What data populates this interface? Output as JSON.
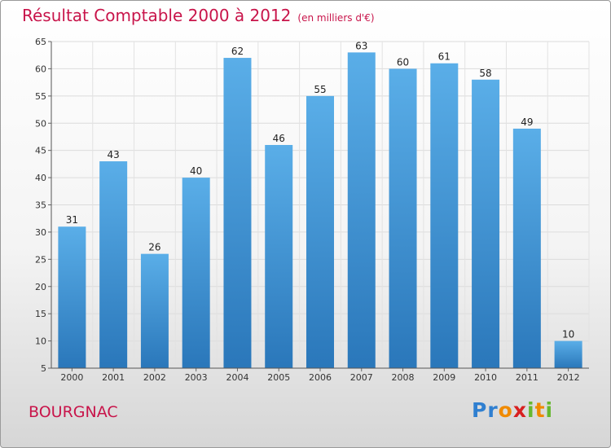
{
  "chart_data": {
    "type": "bar",
    "title": "Résultat Comptable 2000 à 2012",
    "subtitle": "(en milliers d'€)",
    "categories": [
      "2000",
      "2001",
      "2002",
      "2003",
      "2004",
      "2005",
      "2006",
      "2007",
      "2008",
      "2009",
      "2010",
      "2011",
      "2012"
    ],
    "values": [
      31,
      43,
      26,
      40,
      62,
      46,
      55,
      63,
      60,
      61,
      58,
      49,
      10
    ],
    "ylim": [
      5,
      65
    ],
    "yticks": [
      5,
      10,
      15,
      20,
      25,
      30,
      35,
      40,
      45,
      50,
      55,
      60,
      65
    ],
    "grid": true,
    "xlabel": "",
    "ylabel": ""
  },
  "place": "BOURGNAC",
  "logo": {
    "letters": [
      "P",
      "r",
      "o",
      "x",
      "i",
      "t",
      "i"
    ],
    "colors": [
      "#2f7fd0",
      "#2f7fd0",
      "#f08a00",
      "#d82020",
      "#66b830",
      "#f08a00",
      "#66b830"
    ]
  },
  "colors": {
    "bar_top": "#5aaee8",
    "bar_bottom": "#2a77ba",
    "accent": "#c8144a"
  }
}
